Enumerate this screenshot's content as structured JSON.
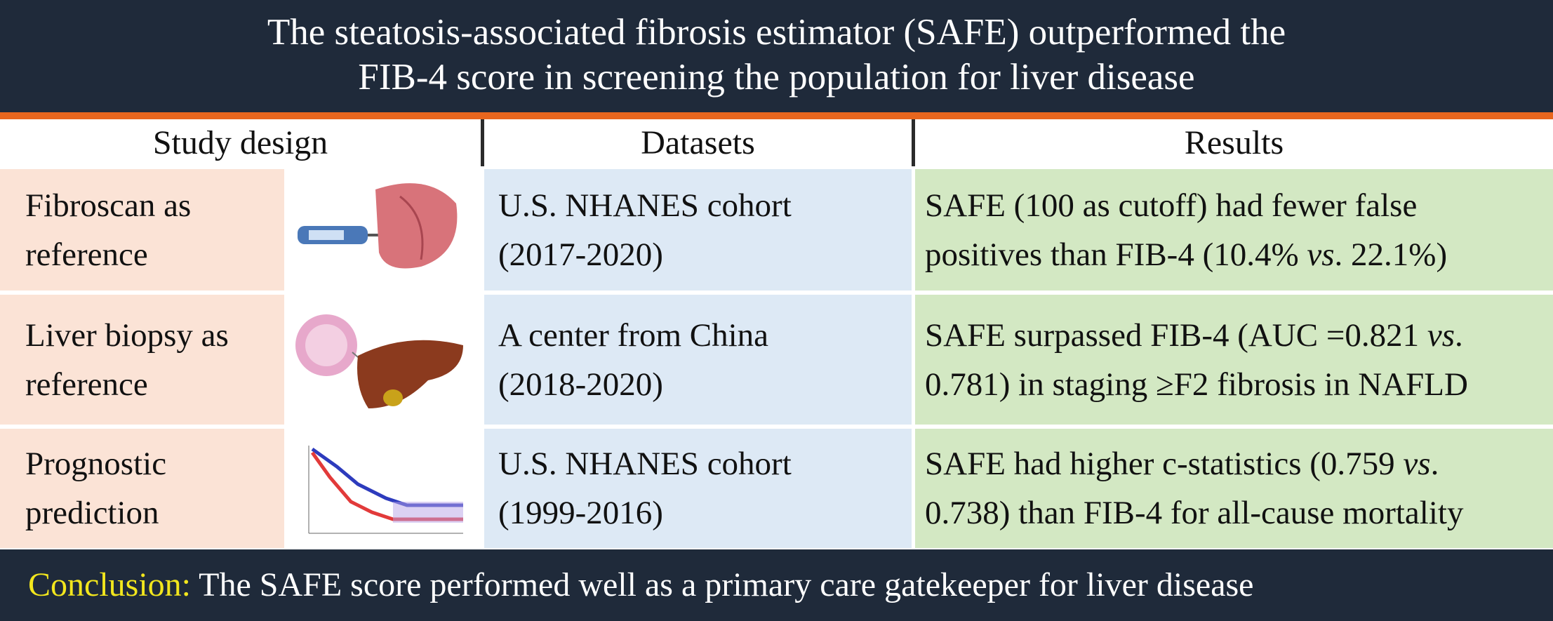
{
  "header": {
    "title": [
      "The steatosis-associated fibrosis estimator (SAFE) outperformed the",
      "FIB-4 score in screening the population for liver disease"
    ]
  },
  "table": {
    "headers": [
      "Study design",
      "Datasets",
      "Results"
    ],
    "rows": [
      {
        "study": [
          "Fibroscan as",
          "reference"
        ],
        "dataset": [
          "U.S. NHANES cohort",
          "(2017-2020)"
        ],
        "result": [
          [
            "SAFE (100 as cutoff) had fewer false"
          ],
          [
            "positives than FIB-4 (10.4% ",
            {
              "text": "vs",
              "italic": true
            },
            ". 22.1%)"
          ]
        ]
      },
      {
        "study": [
          "Liver biopsy as",
          "reference"
        ],
        "dataset": [
          "A center from China",
          "(2018-2020)"
        ],
        "result": [
          [
            "SAFE surpassed FIB-4 (AUC =0.821 ",
            {
              "text": "vs",
              "italic": true
            },
            "."
          ],
          [
            "0.781) in staging  ≥F2 fibrosis in NAFLD"
          ]
        ]
      },
      {
        "study": [
          "Prognostic",
          "prediction"
        ],
        "dataset": [
          "U.S. NHANES cohort",
          "(1999-2016)"
        ],
        "result": [
          [
            "SAFE had higher c-statistics (0.759 ",
            {
              "text": "vs",
              "italic": true
            },
            "."
          ],
          [
            "0.738) than FIB-4 for all-cause mortality"
          ]
        ]
      }
    ]
  },
  "conclusion": {
    "label": "Conclusion:",
    "text": "The SAFE score performed well as a primary care gatekeeper for liver disease"
  }
}
